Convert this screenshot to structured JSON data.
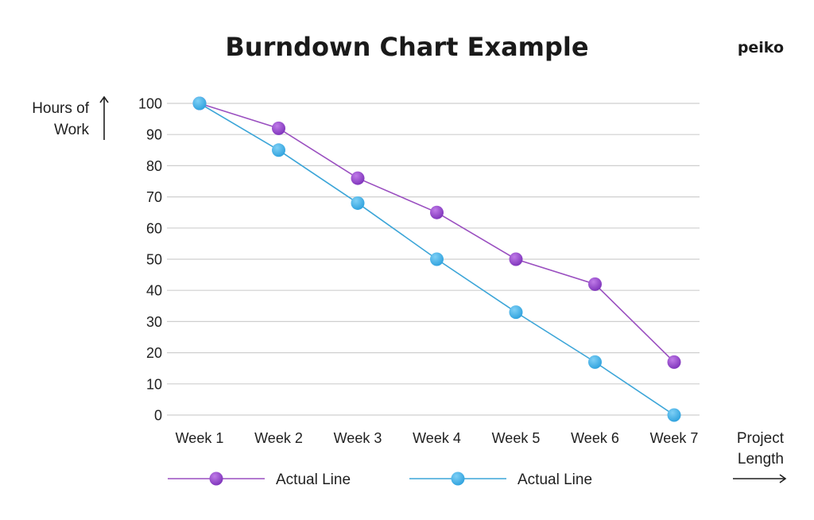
{
  "brand": {
    "logo_text": "peiko"
  },
  "chart_data": {
    "type": "line",
    "title": "Burndown Chart Example",
    "ylabel": [
      "Hours of",
      "Work"
    ],
    "xlabel": [
      "Project",
      "Length"
    ],
    "categories": [
      "Week 1",
      "Week 2",
      "Week 3",
      "Week 4",
      "Week 5",
      "Week 6",
      "Week 7"
    ],
    "ylim": [
      0,
      100
    ],
    "yticks": [
      0,
      10,
      20,
      30,
      40,
      50,
      60,
      70,
      80,
      90,
      100
    ],
    "grid": true,
    "legend_position": "bottom",
    "series": [
      {
        "name": "Actual Line",
        "color": "#8a3fc8",
        "line_color": "#9a4fc0",
        "values": [
          100,
          92,
          76,
          65,
          50,
          42,
          17
        ]
      },
      {
        "name": "Actual Line",
        "color": "#35aee8",
        "line_color": "#3ba5d8",
        "values": [
          100,
          85,
          68,
          50,
          33,
          17,
          0
        ]
      }
    ]
  }
}
